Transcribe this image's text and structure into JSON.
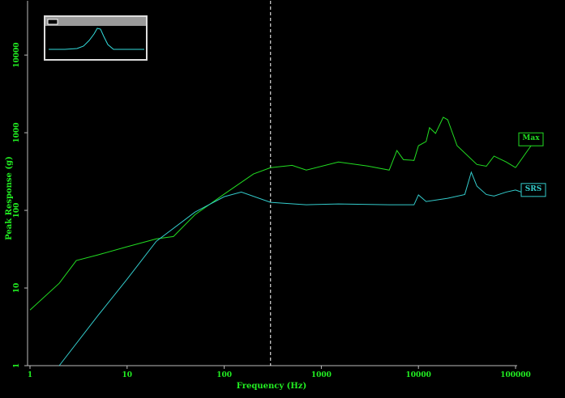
{
  "chart_data": {
    "type": "line",
    "x_label": "Frequency (Hz)",
    "y_label": "Peak Response (g)",
    "log_x": true,
    "log_y": true,
    "xlim": [
      1,
      100000
    ],
    "ylim": [
      1,
      50000
    ],
    "xticks": [
      1,
      10,
      100,
      1000,
      10000,
      100000
    ],
    "yticks": [
      1,
      10,
      100,
      1000,
      10000
    ],
    "marker_x": 300,
    "series": [
      {
        "name": "Max",
        "color": "#22dd22",
        "x": [
          1,
          2,
          3,
          5,
          10,
          20,
          30,
          50,
          100,
          200,
          300,
          500,
          700,
          1500,
          3000,
          5000,
          6000,
          7000,
          9000,
          10000,
          12000,
          13000,
          15000,
          18000,
          20000,
          25000,
          40000,
          50000,
          60000,
          80000,
          100000
        ],
        "values": [
          5.2,
          11.5,
          22.6,
          26.7,
          34,
          43,
          46,
          88,
          162,
          294,
          355,
          380,
          330,
          420,
          372,
          330,
          590,
          450,
          440,
          680,
          770,
          1160,
          980,
          1580,
          1470,
          680,
          390,
          370,
          500,
          420,
          355
        ]
      },
      {
        "name": "SRS",
        "color": "#33cccc",
        "x": [
          2,
          5,
          10,
          20,
          50,
          100,
          150,
          300,
          700,
          1500,
          5000,
          9000,
          10000,
          12000,
          20000,
          30000,
          35000,
          40000,
          50000,
          60000,
          80000,
          100000
        ],
        "values": [
          1,
          4.4,
          13,
          40,
          95,
          150,
          172,
          127,
          118,
          121,
          118,
          118,
          158,
          130,
          143,
          160,
          310,
          205,
          160,
          153,
          172,
          183
        ]
      }
    ]
  }
}
